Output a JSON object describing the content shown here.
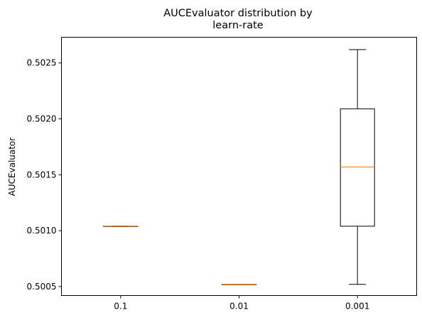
{
  "chart_data": {
    "type": "box",
    "title_lines": [
      "AUCEvaluator distribution by",
      "learn-rate"
    ],
    "xlabel": "",
    "ylabel": "AUCEvaluator",
    "categories": [
      "0.1",
      "0.01",
      "0.001"
    ],
    "ylim": [
      0.50042,
      0.50273
    ],
    "yticks": [
      0.5005,
      0.501,
      0.5015,
      0.502,
      0.5025
    ],
    "ytick_labels": [
      "0.5005",
      "0.5010",
      "0.5015",
      "0.5020",
      "0.5025"
    ],
    "grid": false,
    "boxes": [
      {
        "category": "0.1",
        "whisker_low": 0.50104,
        "q1": 0.50104,
        "median": 0.50104,
        "q3": 0.50104,
        "whisker_high": 0.50104
      },
      {
        "category": "0.01",
        "whisker_low": 0.50052,
        "q1": 0.50052,
        "median": 0.50052,
        "q3": 0.50052,
        "whisker_high": 0.50052
      },
      {
        "category": "0.001",
        "whisker_low": 0.50052,
        "q1": 0.50104,
        "median": 0.50157,
        "q3": 0.50209,
        "whisker_high": 0.50262
      }
    ],
    "colors": {
      "box": "#000000",
      "median": "#ff7f0e",
      "whisker": "#000000"
    }
  }
}
